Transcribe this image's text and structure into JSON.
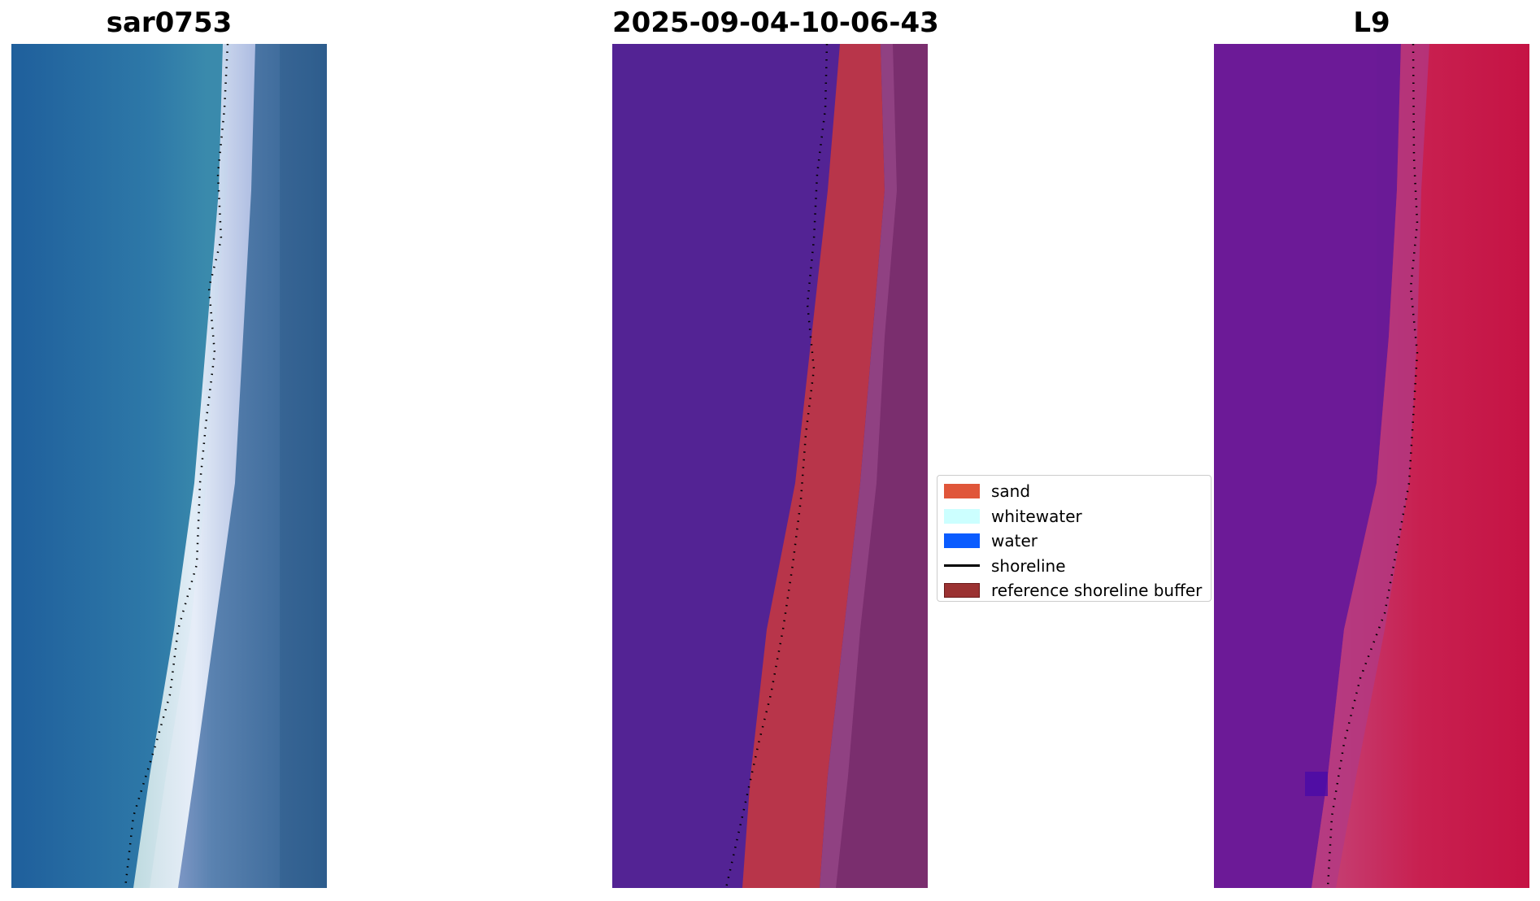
{
  "panels": [
    {
      "title": "sar0753"
    },
    {
      "title": "2025-09-04-10-06-43"
    },
    {
      "title": "L9"
    }
  ],
  "legend": {
    "items": [
      {
        "label": "sand",
        "color": "#e0563a",
        "type": "patch"
      },
      {
        "label": "whitewater",
        "color": "#ccffff",
        "type": "patch"
      },
      {
        "label": "water",
        "color": "#0a5cff",
        "type": "patch"
      },
      {
        "label": "shoreline",
        "color": "#000000",
        "type": "line"
      },
      {
        "label": "reference shoreline buffer",
        "color": "#9b3232",
        "type": "patch"
      }
    ]
  },
  "colors": {
    "classified_water": "#532394",
    "classified_sand": "#b8354a",
    "classified_buffer": "#7a2e6e",
    "rgb_water": "#2e6fa3",
    "rgb_whitewater": "#e8f0ff",
    "swir_water": "#6a1a96",
    "swir_land": "#c61d4a"
  }
}
